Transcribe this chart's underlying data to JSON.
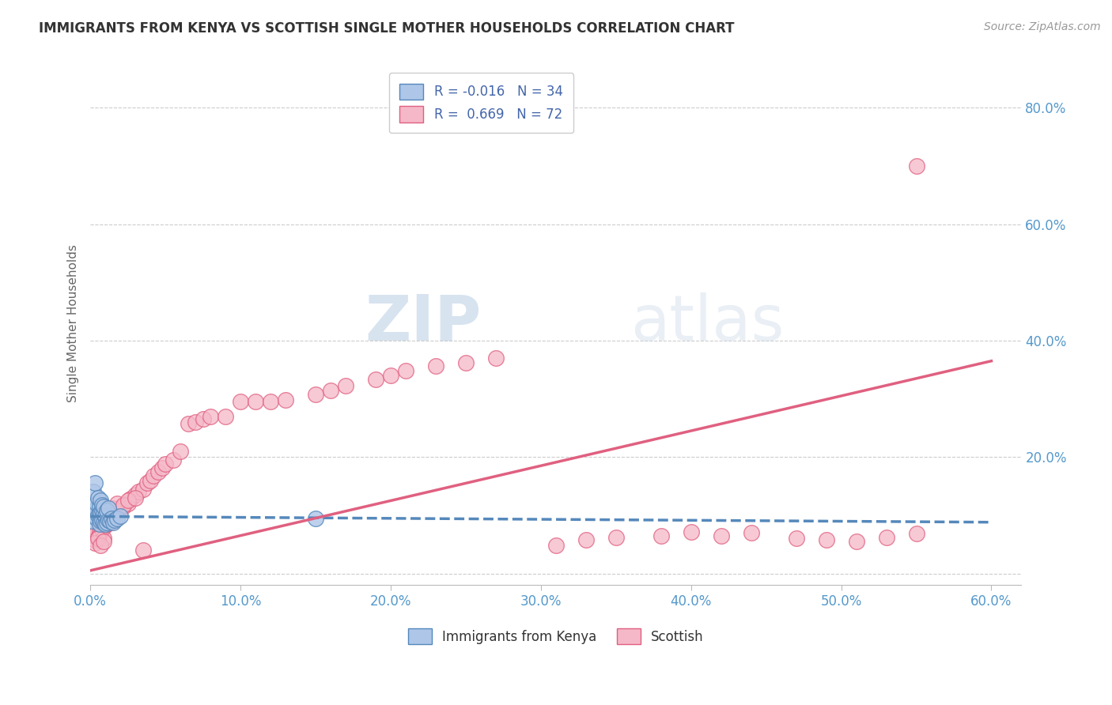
{
  "title": "IMMIGRANTS FROM KENYA VS SCOTTISH SINGLE MOTHER HOUSEHOLDS CORRELATION CHART",
  "source": "Source: ZipAtlas.com",
  "ylabel": "Single Mother Households",
  "xlim": [
    0.0,
    0.62
  ],
  "ylim": [
    -0.02,
    0.88
  ],
  "xticks": [
    0.0,
    0.1,
    0.2,
    0.3,
    0.4,
    0.5,
    0.6
  ],
  "xtick_labels": [
    "0.0%",
    "10.0%",
    "20.0%",
    "30.0%",
    "40.0%",
    "50.0%",
    "60.0%"
  ],
  "yticks": [
    0.0,
    0.2,
    0.4,
    0.6,
    0.8
  ],
  "ytick_labels": [
    "",
    "20.0%",
    "40.0%",
    "60.0%",
    "80.0%"
  ],
  "legend_labels": [
    "Immigrants from Kenya",
    "Scottish"
  ],
  "legend_r_values": [
    "R = -0.016",
    "R =  0.669"
  ],
  "legend_n_values": [
    "N = 34",
    "N = 72"
  ],
  "watermark_zip": "ZIP",
  "watermark_atlas": "atlas",
  "blue_color": "#aec6e8",
  "pink_color": "#f5b8c8",
  "blue_line_color": "#5588bb",
  "pink_line_color": "#e06080",
  "title_color": "#333333",
  "source_color": "#999999",
  "label_color": "#5599cc",
  "tick_label_color": "#5599cc",
  "blue_scatter_x": [
    0.001,
    0.002,
    0.002,
    0.003,
    0.003,
    0.004,
    0.004,
    0.005,
    0.005,
    0.006,
    0.006,
    0.006,
    0.007,
    0.007,
    0.007,
    0.008,
    0.008,
    0.008,
    0.009,
    0.009,
    0.009,
    0.01,
    0.01,
    0.011,
    0.011,
    0.012,
    0.012,
    0.013,
    0.014,
    0.015,
    0.016,
    0.018,
    0.02,
    0.15
  ],
  "blue_scatter_y": [
    0.09,
    0.14,
    0.1,
    0.11,
    0.155,
    0.095,
    0.12,
    0.1,
    0.13,
    0.085,
    0.1,
    0.115,
    0.09,
    0.105,
    0.125,
    0.092,
    0.108,
    0.118,
    0.088,
    0.102,
    0.115,
    0.085,
    0.098,
    0.088,
    0.108,
    0.092,
    0.112,
    0.09,
    0.095,
    0.088,
    0.092,
    0.095,
    0.098,
    0.095
  ],
  "pink_scatter_x": [
    0.002,
    0.003,
    0.004,
    0.005,
    0.006,
    0.007,
    0.008,
    0.009,
    0.01,
    0.011,
    0.012,
    0.013,
    0.015,
    0.016,
    0.018,
    0.02,
    0.022,
    0.025,
    0.027,
    0.03,
    0.032,
    0.035,
    0.038,
    0.04,
    0.042,
    0.045,
    0.048,
    0.05,
    0.055,
    0.06,
    0.065,
    0.07,
    0.075,
    0.08,
    0.09,
    0.1,
    0.11,
    0.12,
    0.13,
    0.15,
    0.16,
    0.17,
    0.19,
    0.2,
    0.21,
    0.23,
    0.25,
    0.27,
    0.31,
    0.33,
    0.35,
    0.38,
    0.4,
    0.42,
    0.44,
    0.47,
    0.49,
    0.51,
    0.53,
    0.55,
    0.003,
    0.005,
    0.007,
    0.009,
    0.012,
    0.015,
    0.018,
    0.022,
    0.025,
    0.03,
    0.035,
    0.55
  ],
  "pink_scatter_y": [
    0.065,
    0.058,
    0.07,
    0.062,
    0.072,
    0.068,
    0.075,
    0.06,
    0.082,
    0.085,
    0.09,
    0.088,
    0.095,
    0.1,
    0.105,
    0.112,
    0.115,
    0.12,
    0.128,
    0.135,
    0.14,
    0.145,
    0.155,
    0.16,
    0.168,
    0.175,
    0.182,
    0.188,
    0.195,
    0.21,
    0.258,
    0.26,
    0.265,
    0.27,
    0.27,
    0.295,
    0.295,
    0.295,
    0.298,
    0.308,
    0.315,
    0.322,
    0.333,
    0.34,
    0.348,
    0.356,
    0.362,
    0.37,
    0.048,
    0.058,
    0.062,
    0.065,
    0.072,
    0.065,
    0.07,
    0.06,
    0.058,
    0.055,
    0.062,
    0.068,
    0.052,
    0.06,
    0.048,
    0.055,
    0.108,
    0.112,
    0.12,
    0.118,
    0.125,
    0.13,
    0.04,
    0.7
  ],
  "blue_trend_x": [
    0.0,
    0.6
  ],
  "blue_trend_y": [
    0.098,
    0.088
  ],
  "pink_trend_x": [
    0.0,
    0.6
  ],
  "pink_trend_y": [
    0.005,
    0.365
  ]
}
